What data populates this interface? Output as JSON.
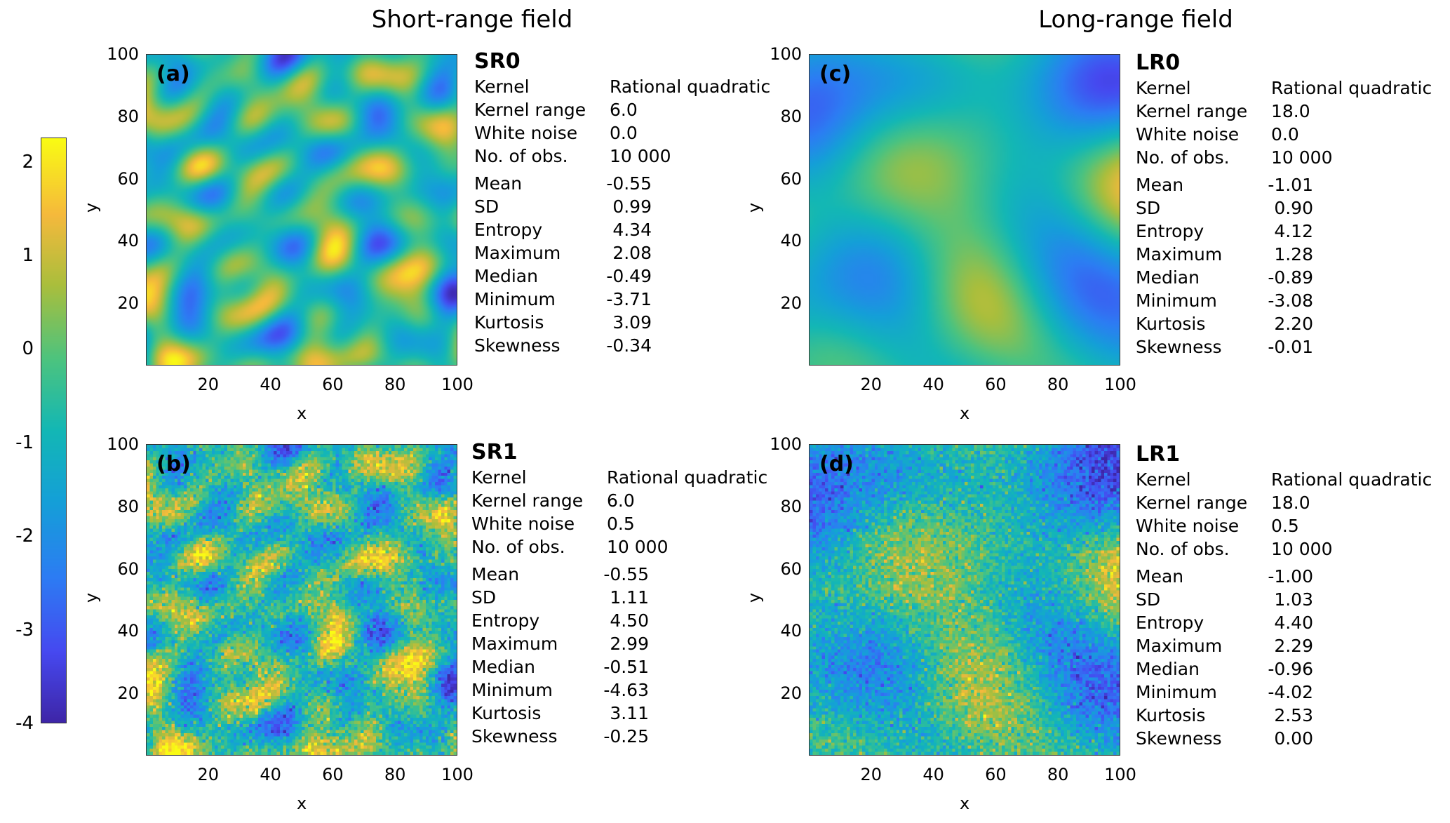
{
  "titles": {
    "short_range": "Short-range field",
    "long_range": "Long-range field"
  },
  "colorbar": {
    "ticks": [
      "2",
      "1",
      "0",
      "-1",
      "-2",
      "-3",
      "-4"
    ],
    "tick_values": [
      2,
      1,
      0,
      -1,
      -2,
      -3,
      -4
    ],
    "range": [
      -4,
      2.26
    ],
    "colormap": "parula"
  },
  "axes": {
    "x_label": "x",
    "y_label": "y",
    "x_ticks": [
      "20",
      "40",
      "60",
      "80",
      "100"
    ],
    "y_ticks": [
      "20",
      "40",
      "60",
      "80",
      "100"
    ],
    "range": [
      0,
      100
    ]
  },
  "stat_labels": {
    "kernel": "Kernel",
    "kernel_range": "Kernel range",
    "white_noise": "White noise",
    "n_obs": "No. of obs.",
    "mean": "Mean",
    "sd": "SD",
    "entropy": "Entropy",
    "maximum": "Maximum",
    "median": "Median",
    "minimum": "Minimum",
    "kurtosis": "Kurtosis",
    "skewness": "Skewness"
  },
  "chart_data": [
    {
      "type": "heatmap",
      "tag": "(a)",
      "name": "SR0",
      "kernel": "Rational quadratic",
      "kernel_range": "6.0",
      "white_noise": "0.0",
      "n_obs": "10 000",
      "stats": {
        "mean": "-0.55",
        "sd": "0.99",
        "entropy": "4.34",
        "maximum": "2.08",
        "median": "-0.49",
        "minimum": "-3.71",
        "kurtosis": "3.09",
        "skewness": "-0.34"
      },
      "xlim": [
        0,
        100
      ],
      "ylim": [
        0,
        100
      ]
    },
    {
      "type": "heatmap",
      "tag": "(b)",
      "name": "SR1",
      "kernel": "Rational quadratic",
      "kernel_range": "6.0",
      "white_noise": "0.5",
      "n_obs": "10 000",
      "stats": {
        "mean": "-0.55",
        "sd": "1.11",
        "entropy": "4.50",
        "maximum": "2.99",
        "median": "-0.51",
        "minimum": "-4.63",
        "kurtosis": "3.11",
        "skewness": "-0.25"
      },
      "xlim": [
        0,
        100
      ],
      "ylim": [
        0,
        100
      ]
    },
    {
      "type": "heatmap",
      "tag": "(c)",
      "name": "LR0",
      "kernel": "Rational quadratic",
      "kernel_range": "18.0",
      "white_noise": "0.0",
      "n_obs": "10 000",
      "stats": {
        "mean": "-1.01",
        "sd": "0.90",
        "entropy": "4.12",
        "maximum": "1.28",
        "median": "-0.89",
        "minimum": "-3.08",
        "kurtosis": "2.20",
        "skewness": "-0.01"
      },
      "xlim": [
        0,
        100
      ],
      "ylim": [
        0,
        100
      ]
    },
    {
      "type": "heatmap",
      "tag": "(d)",
      "name": "LR1",
      "kernel": "Rational quadratic",
      "kernel_range": "18.0",
      "white_noise": "0.5",
      "n_obs": "10 000",
      "stats": {
        "mean": "-1.00",
        "sd": "1.03",
        "entropy": "4.40",
        "maximum": "2.29",
        "median": "-0.96",
        "minimum": "-4.02",
        "kurtosis": "2.53",
        "skewness": "0.00"
      },
      "xlim": [
        0,
        100
      ],
      "ylim": [
        0,
        100
      ]
    }
  ]
}
